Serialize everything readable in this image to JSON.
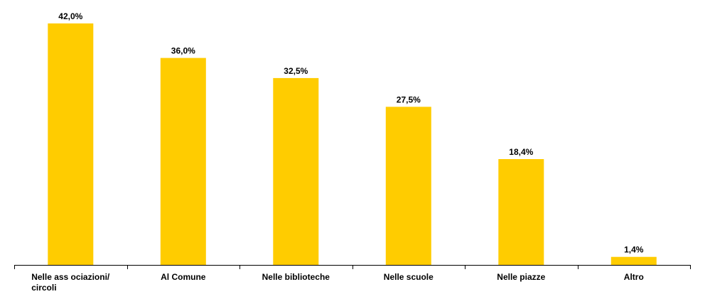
{
  "chart_data": {
    "type": "bar",
    "categories": [
      [
        "Nelle ass ociazioni/",
        "circoli"
      ],
      [
        "Al Comune"
      ],
      [
        "Nelle biblioteche"
      ],
      [
        "Nelle scuole"
      ],
      [
        "Nelle piazze"
      ],
      [
        "Altro"
      ]
    ],
    "values": [
      42.0,
      36.0,
      32.5,
      27.5,
      18.4,
      1.4
    ],
    "value_labels": [
      "42,0%",
      "36,0%",
      "32,5%",
      "27,5%",
      "18,4%",
      "1,4%"
    ],
    "ylim": [
      0,
      42.0
    ],
    "grid": false,
    "bar_color": "#FFCC00",
    "axis_color": "#000000"
  }
}
